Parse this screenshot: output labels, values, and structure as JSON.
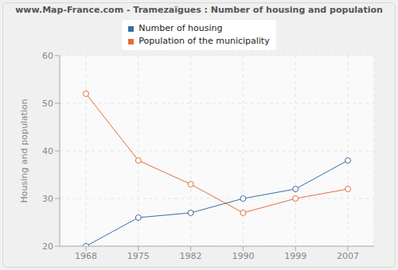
{
  "chart_data": {
    "type": "line",
    "title": "www.Map-France.com - Tramezaïgues : Number of housing and population",
    "y_label": "Housing and population",
    "categories": [
      "1968",
      "1975",
      "1982",
      "1990",
      "1999",
      "2007"
    ],
    "series": [
      {
        "name": "Number of housing",
        "color": "#3b6ea0",
        "values": [
          20,
          26,
          27,
          30,
          32,
          38
        ]
      },
      {
        "name": "Population of the municipality",
        "color": "#e0703a",
        "values": [
          52,
          38,
          33,
          27,
          30,
          32
        ]
      }
    ],
    "ylim": [
      20,
      60
    ],
    "yticks": [
      20,
      30,
      40,
      50,
      60
    ],
    "grid": true,
    "marker": "circle",
    "legend": "top"
  }
}
